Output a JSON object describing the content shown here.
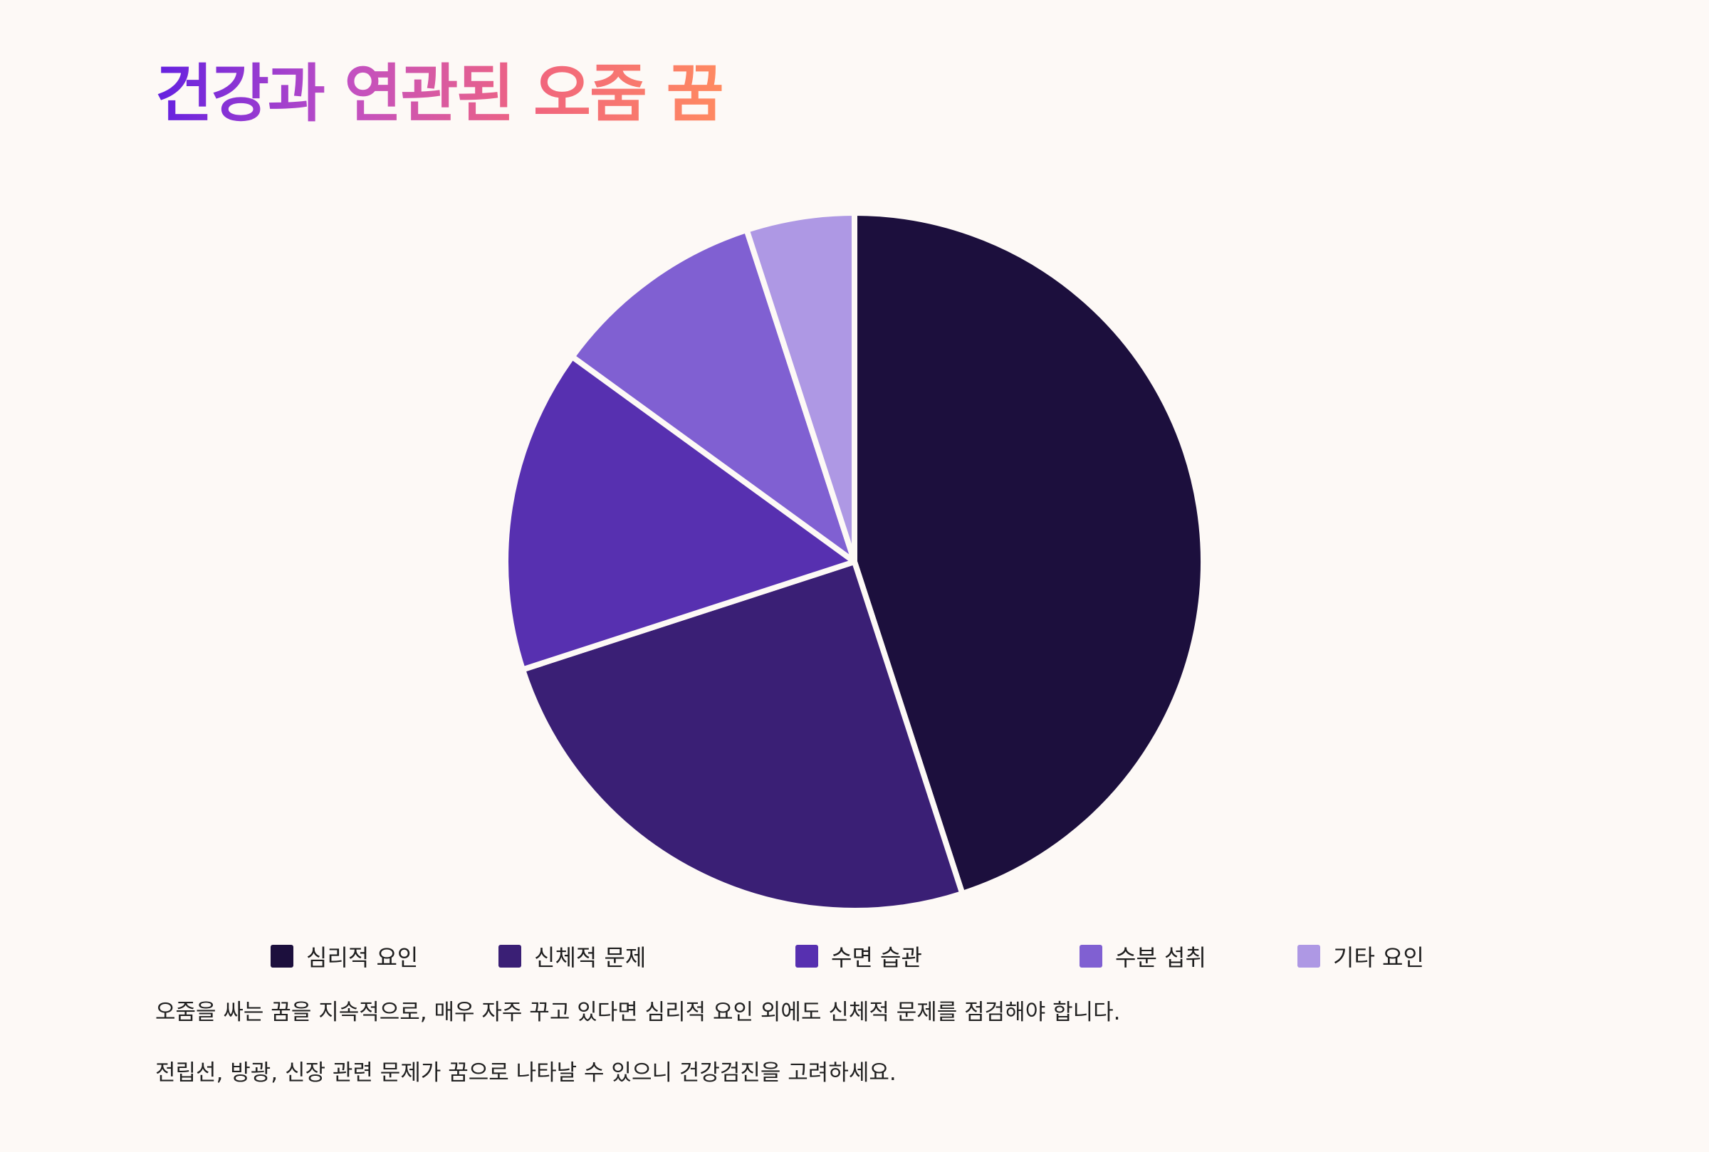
{
  "title": "건강과 연관된 오줌 꿈",
  "chart_data": {
    "type": "pie",
    "title": "건강과 연관된 오줌 꿈",
    "categories": [
      "심리적 요인",
      "신체적 문제",
      "수면 습관",
      "수분 섭취",
      "기타 요인"
    ],
    "values": [
      45,
      25,
      15,
      10,
      5
    ],
    "colors": [
      "#1c0f3d",
      "#3a1f75",
      "#5730b0",
      "#8060d2",
      "#ae98e4"
    ],
    "legend": "bottom",
    "slice_border": "#fdf9f6"
  },
  "notes": [
    "오줌을 싸는 꿈을 지속적으로, 매우 자주 꾸고 있다면 심리적 요인 외에도 신체적 문제를 점검해야 합니다.",
    "전립선, 방광, 신장 관련 문제가 꿈으로 나타날 수 있으니 건강검진을 고려하세요."
  ]
}
